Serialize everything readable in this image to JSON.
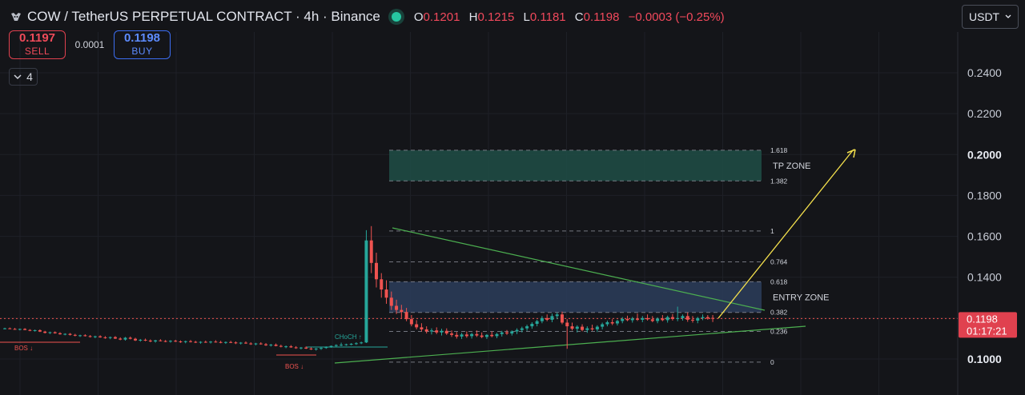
{
  "header": {
    "symbol_title": "COW / TetherUS PERPETUAL CONTRACT · 4h · Binance",
    "open_label": "O",
    "open_value": "0.1201",
    "high_label": "H",
    "high_value": "0.1215",
    "low_label": "L",
    "low_value": "0.1181",
    "close_label": "C",
    "close_value": "0.1198",
    "change": "−0.0003 (−0.25%)"
  },
  "trade": {
    "sell_price": "0.1197",
    "sell_label": "SELL",
    "spread": "0.0001",
    "buy_price": "0.1198",
    "buy_label": "BUY"
  },
  "indicators_toggle": {
    "icon": "chevron-down-icon",
    "count": "4"
  },
  "currency_select": {
    "value": "USDT",
    "icon": "chevron-down-icon"
  },
  "colors": {
    "background": "#141519",
    "up": "#26a69a",
    "down": "#ef5350",
    "tp_zone": "#1e4d47",
    "entry_zone": "#2c3d5c",
    "trend": "#4caf50",
    "arrow": "#f4e04d"
  },
  "chart_data": {
    "type": "candlestick",
    "y_axis": {
      "ylim": [
        0.092,
        0.26
      ],
      "ticks": [
        0.24,
        0.22,
        0.2,
        0.18,
        0.16,
        0.14,
        0.12,
        0.1
      ],
      "tick_labels": [
        "0.2400",
        "0.2200",
        "0.2000",
        "0.1800",
        "0.1600",
        "0.1400",
        "0.1200",
        "0.1000"
      ]
    },
    "last_price": {
      "value": 0.1198,
      "label": "0.1198",
      "countdown": "01:17:21"
    },
    "candles": [
      [
        0.1149,
        0.1153,
        0.1145,
        0.115
      ],
      [
        0.115,
        0.1154,
        0.1146,
        0.1147
      ],
      [
        0.1147,
        0.1152,
        0.1143,
        0.1144
      ],
      [
        0.1144,
        0.1149,
        0.114,
        0.1147
      ],
      [
        0.1147,
        0.1151,
        0.1141,
        0.1142
      ],
      [
        0.1142,
        0.1146,
        0.1136,
        0.1138
      ],
      [
        0.1138,
        0.1144,
        0.1134,
        0.1141
      ],
      [
        0.1141,
        0.1145,
        0.1132,
        0.1134
      ],
      [
        0.1134,
        0.1138,
        0.1125,
        0.1128
      ],
      [
        0.1128,
        0.1134,
        0.1122,
        0.1131
      ],
      [
        0.1131,
        0.1135,
        0.1124,
        0.1126
      ],
      [
        0.1126,
        0.1131,
        0.1119,
        0.1121
      ],
      [
        0.1121,
        0.1126,
        0.1116,
        0.1123
      ],
      [
        0.1123,
        0.1127,
        0.1115,
        0.1118
      ],
      [
        0.1118,
        0.1123,
        0.1111,
        0.1114
      ],
      [
        0.1114,
        0.1119,
        0.1108,
        0.1116
      ],
      [
        0.1116,
        0.1121,
        0.111,
        0.1112
      ],
      [
        0.1112,
        0.1117,
        0.1105,
        0.1108
      ],
      [
        0.1108,
        0.1114,
        0.1102,
        0.1111
      ],
      [
        0.1111,
        0.1116,
        0.1104,
        0.1106
      ],
      [
        0.1106,
        0.1112,
        0.1099,
        0.1103
      ],
      [
        0.1103,
        0.111,
        0.1097,
        0.1107
      ],
      [
        0.1107,
        0.1112,
        0.1098,
        0.11
      ],
      [
        0.11,
        0.1106,
        0.1092,
        0.1095
      ],
      [
        0.1095,
        0.1108,
        0.109,
        0.1104
      ],
      [
        0.1104,
        0.111,
        0.1096,
        0.1099
      ],
      [
        0.1099,
        0.1104,
        0.1088,
        0.1091
      ],
      [
        0.1091,
        0.1098,
        0.1085,
        0.1094
      ],
      [
        0.1094,
        0.11,
        0.1087,
        0.109
      ],
      [
        0.109,
        0.1096,
        0.1082,
        0.1086
      ],
      [
        0.1086,
        0.1094,
        0.108,
        0.1091
      ],
      [
        0.1091,
        0.1097,
        0.1086,
        0.1088
      ],
      [
        0.1088,
        0.1093,
        0.1082,
        0.1085
      ],
      [
        0.1085,
        0.1092,
        0.108,
        0.1089
      ],
      [
        0.1089,
        0.1094,
        0.1083,
        0.1086
      ],
      [
        0.1086,
        0.1091,
        0.1079,
        0.1083
      ],
      [
        0.1083,
        0.109,
        0.1077,
        0.1087
      ],
      [
        0.1087,
        0.1093,
        0.1081,
        0.1084
      ],
      [
        0.1084,
        0.1089,
        0.1078,
        0.1081
      ],
      [
        0.1081,
        0.1087,
        0.1075,
        0.1084
      ],
      [
        0.1084,
        0.109,
        0.1079,
        0.1082
      ],
      [
        0.1082,
        0.1088,
        0.1076,
        0.1085
      ],
      [
        0.1085,
        0.1092,
        0.108,
        0.1083
      ],
      [
        0.1083,
        0.1089,
        0.1077,
        0.108
      ],
      [
        0.108,
        0.1086,
        0.1074,
        0.1083
      ],
      [
        0.1083,
        0.1089,
        0.1078,
        0.1081
      ],
      [
        0.1081,
        0.1086,
        0.1073,
        0.1077
      ],
      [
        0.1077,
        0.1083,
        0.1071,
        0.108
      ],
      [
        0.108,
        0.1086,
        0.1074,
        0.1076
      ],
      [
        0.1076,
        0.1082,
        0.1069,
        0.1073
      ],
      [
        0.1073,
        0.1079,
        0.1067,
        0.1076
      ],
      [
        0.1076,
        0.1082,
        0.107,
        0.1072
      ],
      [
        0.1072,
        0.1078,
        0.1064,
        0.1067
      ],
      [
        0.1067,
        0.1074,
        0.1061,
        0.107
      ],
      [
        0.107,
        0.1076,
        0.1062,
        0.1064
      ],
      [
        0.1064,
        0.107,
        0.1057,
        0.106
      ],
      [
        0.106,
        0.1066,
        0.1053,
        0.1062
      ],
      [
        0.1062,
        0.1068,
        0.1055,
        0.1057
      ],
      [
        0.1057,
        0.1063,
        0.105,
        0.1053
      ],
      [
        0.1053,
        0.1059,
        0.1047,
        0.1056
      ],
      [
        0.1056,
        0.1062,
        0.1049,
        0.1051
      ],
      [
        0.1051,
        0.1057,
        0.1044,
        0.1048
      ],
      [
        0.1048,
        0.1054,
        0.1041,
        0.1051
      ],
      [
        0.1051,
        0.1058,
        0.1045,
        0.1054
      ],
      [
        0.1054,
        0.1062,
        0.105,
        0.1059
      ],
      [
        0.1059,
        0.1066,
        0.1055,
        0.1064
      ],
      [
        0.1064,
        0.1072,
        0.106,
        0.1068
      ],
      [
        0.1068,
        0.108,
        0.1063,
        0.107
      ],
      [
        0.107,
        0.1075,
        0.1065,
        0.1072
      ],
      [
        0.1072,
        0.1078,
        0.1067,
        0.1074
      ],
      [
        0.1074,
        0.1082,
        0.1069,
        0.1077
      ],
      [
        0.1077,
        0.1085,
        0.1073,
        0.1081
      ],
      [
        0.1081,
        0.163,
        0.1078,
        0.158
      ],
      [
        0.158,
        0.165,
        0.142,
        0.147
      ],
      [
        0.147,
        0.152,
        0.135,
        0.139
      ],
      [
        0.139,
        0.142,
        0.13,
        0.134
      ],
      [
        0.134,
        0.1385,
        0.127,
        0.13
      ],
      [
        0.13,
        0.133,
        0.124,
        0.126
      ],
      [
        0.126,
        0.129,
        0.122,
        0.124
      ],
      [
        0.124,
        0.1265,
        0.12,
        0.123
      ],
      [
        0.123,
        0.125,
        0.1185,
        0.1195
      ],
      [
        0.1195,
        0.1215,
        0.116,
        0.117
      ],
      [
        0.117,
        0.119,
        0.1145,
        0.1155
      ],
      [
        0.1155,
        0.1175,
        0.1135,
        0.1145
      ],
      [
        0.1145,
        0.116,
        0.1125,
        0.1135
      ],
      [
        0.1135,
        0.115,
        0.112,
        0.114
      ],
      [
        0.114,
        0.1155,
        0.1122,
        0.113
      ],
      [
        0.113,
        0.1148,
        0.1115,
        0.1138
      ],
      [
        0.1138,
        0.115,
        0.1118,
        0.1125
      ],
      [
        0.1125,
        0.114,
        0.1108,
        0.1118
      ],
      [
        0.1118,
        0.1132,
        0.11,
        0.111
      ],
      [
        0.111,
        0.1128,
        0.1098,
        0.112
      ],
      [
        0.112,
        0.1135,
        0.1104,
        0.1112
      ],
      [
        0.1112,
        0.1128,
        0.11,
        0.1122
      ],
      [
        0.1122,
        0.114,
        0.1108,
        0.1115
      ],
      [
        0.1115,
        0.113,
        0.1102,
        0.1108
      ],
      [
        0.1108,
        0.1122,
        0.1098,
        0.1118
      ],
      [
        0.1118,
        0.1135,
        0.1106,
        0.1112
      ],
      [
        0.1112,
        0.1128,
        0.1102,
        0.1122
      ],
      [
        0.1122,
        0.1138,
        0.111,
        0.113
      ],
      [
        0.113,
        0.1142,
        0.1118,
        0.1125
      ],
      [
        0.1125,
        0.114,
        0.1115,
        0.1135
      ],
      [
        0.1135,
        0.115,
        0.1122,
        0.1142
      ],
      [
        0.1142,
        0.1158,
        0.113,
        0.115
      ],
      [
        0.115,
        0.1168,
        0.1138,
        0.116
      ],
      [
        0.116,
        0.118,
        0.1148,
        0.1172
      ],
      [
        0.1172,
        0.1192,
        0.116,
        0.1185
      ],
      [
        0.1185,
        0.121,
        0.1175,
        0.12
      ],
      [
        0.12,
        0.1218,
        0.1185,
        0.1192
      ],
      [
        0.1192,
        0.1222,
        0.118,
        0.121
      ],
      [
        0.121,
        0.1228,
        0.1195,
        0.1218
      ],
      [
        0.1218,
        0.1232,
        0.117,
        0.1178
      ],
      [
        0.1178,
        0.1195,
        0.105,
        0.116
      ],
      [
        0.116,
        0.1178,
        0.114,
        0.1148
      ],
      [
        0.1148,
        0.1165,
        0.113,
        0.1158
      ],
      [
        0.1158,
        0.117,
        0.1135,
        0.1142
      ],
      [
        0.1142,
        0.116,
        0.1128,
        0.115
      ],
      [
        0.115,
        0.1168,
        0.1138,
        0.1145
      ],
      [
        0.1145,
        0.1165,
        0.1132,
        0.1158
      ],
      [
        0.1158,
        0.1178,
        0.1145,
        0.117
      ],
      [
        0.117,
        0.1188,
        0.116,
        0.118
      ],
      [
        0.118,
        0.1195,
        0.1166,
        0.1174
      ],
      [
        0.1174,
        0.1192,
        0.1164,
        0.1186
      ],
      [
        0.1186,
        0.1205,
        0.1175,
        0.1196
      ],
      [
        0.1196,
        0.1212,
        0.1185,
        0.119
      ],
      [
        0.119,
        0.1206,
        0.1178,
        0.1198
      ],
      [
        0.1198,
        0.1222,
        0.1186,
        0.1192
      ],
      [
        0.1192,
        0.121,
        0.118,
        0.12
      ],
      [
        0.12,
        0.1218,
        0.1188,
        0.1194
      ],
      [
        0.1194,
        0.121,
        0.118,
        0.1186
      ],
      [
        0.1186,
        0.1204,
        0.1175,
        0.1198
      ],
      [
        0.1198,
        0.1215,
        0.1185,
        0.119
      ],
      [
        0.119,
        0.1212,
        0.1178,
        0.1205
      ],
      [
        0.1205,
        0.122,
        0.1188,
        0.1196
      ],
      [
        0.1196,
        0.1256,
        0.1185,
        0.12
      ],
      [
        0.12,
        0.1218,
        0.1188,
        0.121
      ],
      [
        0.121,
        0.1228,
        0.1182,
        0.1192
      ],
      [
        0.1192,
        0.121,
        0.1178,
        0.1188
      ],
      [
        0.1188,
        0.1206,
        0.1175,
        0.12
      ],
      [
        0.12,
        0.1218,
        0.119,
        0.1205
      ],
      [
        0.1205,
        0.1215,
        0.1192,
        0.1198
      ],
      [
        0.1201,
        0.1215,
        0.1181,
        0.1198
      ]
    ],
    "annotations": {
      "tp_zone": {
        "label": "TP ZONE",
        "low": 0.1871,
        "high": 0.2021
      },
      "entry_zone": {
        "label": "ENTRY ZONE",
        "low": 0.1228,
        "high": 0.1378
      },
      "fib_levels": [
        {
          "label": "1.618",
          "price": 0.2021
        },
        {
          "label": "1.382",
          "price": 0.1871
        },
        {
          "label": "1",
          "price": 0.1626
        },
        {
          "label": "0.764",
          "price": 0.1475
        },
        {
          "label": "0.618",
          "price": 0.1378
        },
        {
          "label": "0.382",
          "price": 0.1228
        },
        {
          "label": "0.236",
          "price": 0.1135
        },
        {
          "label": "0",
          "price": 0.0985
        }
      ],
      "structure_labels": [
        {
          "label": "BOS ↓"
        },
        {
          "label": "BOS ↓"
        },
        {
          "label": "CHoCH ↑"
        }
      ],
      "projection_target": 0.2025
    }
  }
}
